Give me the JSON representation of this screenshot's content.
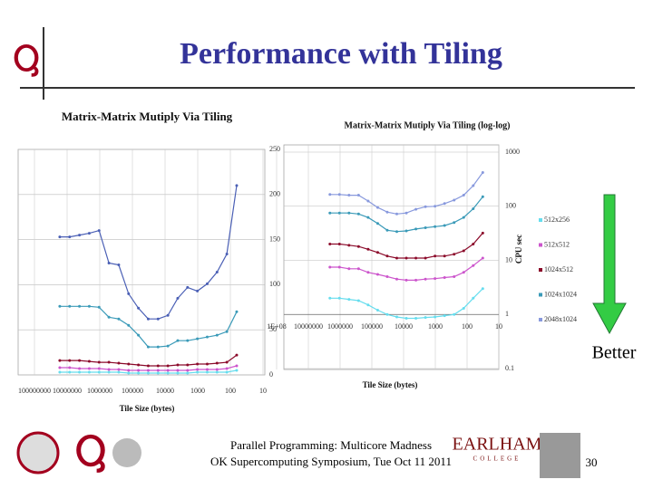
{
  "slide": {
    "title": "Performance with Tiling",
    "better": "Better",
    "footer": [
      "Parallel Programming: Multicore Madness",
      "OK Supercomputing Symposium, Tue Oct 11 2011"
    ],
    "page": "30",
    "logo_text": [
      "EARLHAM",
      "COLLEGE"
    ]
  },
  "chart_data": [
    {
      "type": "line",
      "title": "Matrix-Matrix Mutiply Via Tiling",
      "x_label": "Tile Size (bytes)",
      "log_x": true,
      "grid": true,
      "x": [
        16777216,
        8388608,
        4194304,
        2097152,
        1048576,
        524288,
        262144,
        131072,
        65536,
        32768,
        16384,
        8192,
        4096,
        2048,
        1024,
        512,
        256,
        128,
        64
      ],
      "xlim": [
        100000000,
        10
      ],
      "xticks": [
        100000000,
        10000000,
        1000000,
        100000,
        10000,
        1000,
        100,
        10
      ],
      "ylim": [
        0,
        250
      ],
      "yticks": [
        0,
        50,
        100,
        150,
        200,
        250
      ],
      "series": [
        {
          "color": "#66ddee",
          "values": [
            3,
            3,
            3,
            3,
            3,
            3,
            3,
            2,
            2,
            2,
            2,
            2,
            2,
            2,
            3,
            3,
            3,
            3,
            5
          ]
        },
        {
          "color": "#cc55cc",
          "values": [
            8,
            8,
            7,
            7,
            7,
            6,
            6,
            5,
            5,
            5,
            5,
            5,
            5,
            5,
            6,
            6,
            6,
            7,
            10
          ]
        },
        {
          "color": "#8b0a2a",
          "values": [
            16,
            16,
            16,
            15,
            14,
            14,
            13,
            12,
            11,
            10,
            10,
            10,
            11,
            11,
            12,
            12,
            13,
            14,
            22
          ]
        },
        {
          "color": "#3a9ab8",
          "values": [
            76,
            76,
            76,
            76,
            75,
            64,
            62,
            55,
            44,
            31,
            31,
            32,
            38,
            38,
            40,
            42,
            44,
            48,
            70
          ]
        },
        {
          "color": "#4a5fb5",
          "values": [
            153,
            153,
            155,
            157,
            160,
            124,
            122,
            90,
            74,
            62,
            62,
            66,
            85,
            97,
            93,
            101,
            114,
            134,
            210
          ]
        }
      ]
    },
    {
      "type": "line",
      "title": "Matrix-Matrix Mutiply Via Tiling (log-log)",
      "x_label": "Tile Size (bytes)",
      "y_label": "CPU sec",
      "log_x": true,
      "log_y": true,
      "grid": true,
      "legend": "right",
      "x": [
        2097152,
        1048576,
        524288,
        262144,
        131072,
        65536,
        32768,
        16384,
        8192,
        4096,
        2048,
        1024,
        512,
        256,
        128,
        64,
        32
      ],
      "xlim": [
        100000000,
        10
      ],
      "xticks": [
        {
          "value": 100000000,
          "label": "1E+08"
        },
        10000000,
        1000000,
        100000,
        10000,
        1000,
        100,
        10
      ],
      "ylim": [
        0.1,
        1000
      ],
      "yticks": [
        0.1,
        1,
        10,
        100,
        1000
      ],
      "series": [
        {
          "name": "512x256",
          "color": "#66ddee",
          "values": [
            2,
            2,
            1.9,
            1.8,
            1.5,
            1.2,
            1,
            0.9,
            0.85,
            0.85,
            0.88,
            0.9,
            0.95,
            1,
            1.3,
            2,
            3
          ]
        },
        {
          "name": "512x512",
          "color": "#cc55cc",
          "values": [
            7.5,
            7.5,
            7,
            7,
            6,
            5.5,
            5,
            4.5,
            4.3,
            4.3,
            4.5,
            4.6,
            4.8,
            5,
            6,
            8,
            11
          ]
        },
        {
          "name": "1024x512",
          "color": "#8b0a2a",
          "values": [
            20,
            20,
            19,
            18,
            16,
            14,
            12,
            11,
            11,
            11,
            11,
            12,
            12,
            13,
            15,
            20,
            32
          ]
        },
        {
          "name": "1024x1024",
          "color": "#3a9ab8",
          "values": [
            75,
            75,
            75,
            72,
            62,
            48,
            36,
            34,
            35,
            38,
            40,
            42,
            44,
            50,
            62,
            90,
            150
          ]
        },
        {
          "name": "2048x1024",
          "color": "#8899dd",
          "values": [
            165,
            165,
            160,
            160,
            125,
            95,
            78,
            72,
            75,
            88,
            98,
            100,
            112,
            130,
            160,
            240,
            420
          ]
        }
      ]
    }
  ]
}
